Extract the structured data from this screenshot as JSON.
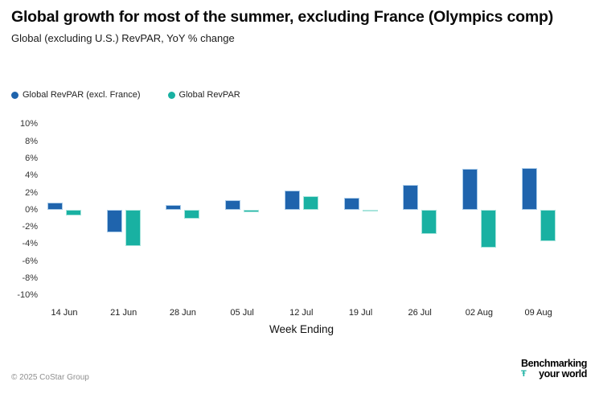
{
  "header": {
    "title": "Global growth for most of the summer, excluding France (Olympics comp)",
    "subtitle": "Global (excluding U.S.) RevPAR, YoY % change"
  },
  "legend": [
    {
      "label": "Global RevPAR (excl. France)",
      "color": "#1f64ad"
    },
    {
      "label": "Global RevPAR",
      "color": "#19b1a2"
    }
  ],
  "chart_data": {
    "type": "bar",
    "title": "Global growth for most of the summer, excluding France (Olympics comp)",
    "subtitle": "Global (excluding U.S.) RevPAR, YoY % change",
    "categories": [
      "14 Jun",
      "21 Jun",
      "28 Jun",
      "05 Jul",
      "12 Jul",
      "19 Jul",
      "26 Jul",
      "02 Aug",
      "09 Aug"
    ],
    "series": [
      {
        "name": "Global RevPAR (excl. France)",
        "color": "#1f64ad",
        "border_color": "#a9cbe9",
        "values": [
          0.9,
          -2.6,
          0.6,
          1.2,
          2.3,
          1.4,
          2.9,
          4.8,
          4.9
        ]
      },
      {
        "name": "Global RevPAR",
        "color": "#19b1a2",
        "border_color": "#a8e4dc",
        "values": [
          -0.6,
          -4.2,
          -1.0,
          -0.3,
          1.6,
          -0.1,
          -2.8,
          -4.4,
          -3.6
        ]
      }
    ],
    "xlabel": "Week Ending",
    "ylabel": "",
    "ylim": [
      -10,
      10
    ],
    "ytick_step": 2,
    "ytick_suffix": "%",
    "grid": false,
    "legend_position": "top-left"
  },
  "footer": {
    "copyright": "© 2025 CoStar Group",
    "logo": {
      "line1": "Benchmarking",
      "line2": "your world",
      "glyph": "Ŧ",
      "glyph_color": "#19b1a2"
    }
  }
}
